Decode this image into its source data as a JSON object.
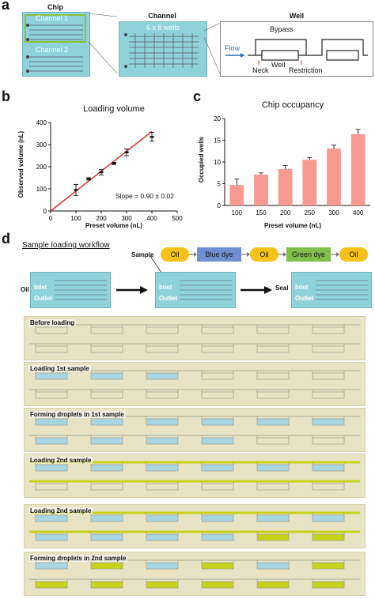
{
  "panel_a": {
    "letter": "a",
    "chip_title": "Chip",
    "channel1": "Channel 1",
    "channel2": "Channel 2",
    "channel_title": "Channel",
    "wells_label": "6 x 8 wells",
    "well_title": "Well",
    "bypass": "Bypass",
    "flow": "Flow",
    "well": "Well",
    "neck": "Neck",
    "restriction": "Restriction"
  },
  "panel_b": {
    "letter": "b",
    "slope_text": "Slope = 0.90 ± 0.02",
    "chart_data": {
      "type": "scatter",
      "title": "Loading volume",
      "xlabel": "Preset volume (nL)",
      "ylabel": "Observed volume (nL)",
      "x": [
        100,
        150,
        200,
        250,
        300,
        400
      ],
      "y": [
        95,
        145,
        175,
        215,
        265,
        335
      ],
      "err": [
        25,
        5,
        12,
        5,
        15,
        20
      ],
      "xlim": [
        0,
        500
      ],
      "ylim": [
        0,
        400
      ],
      "xticks": [
        "0",
        "100",
        "200",
        "300",
        "400",
        "500"
      ],
      "yticks": [
        "0",
        "100",
        "200",
        "300",
        "400"
      ],
      "fit_color": "#e03a2b",
      "point_color": "#111111"
    }
  },
  "panel_c": {
    "letter": "c",
    "chart_data": {
      "type": "bar",
      "title": "Chip occupancy",
      "xlabel": "Preset volume (nL)",
      "ylabel": "Occupied wells",
      "categories": [
        "100",
        "150",
        "200",
        "250",
        "300",
        "400"
      ],
      "values": [
        4.7,
        7.1,
        8.4,
        10.5,
        13.1,
        16.4
      ],
      "err": [
        1.4,
        0.4,
        0.8,
        0.5,
        0.8,
        1.1
      ],
      "ylim": [
        0,
        20
      ],
      "yticks": [
        "0",
        "5",
        "10",
        "15",
        "20"
      ],
      "bar_color": "#f79a92",
      "err_color": "#222222"
    }
  },
  "panel_d": {
    "letter": "d",
    "workflow_title": "Sample loading workflow",
    "sample": "Sample",
    "oil_left": "Oil",
    "inlet": "Inlet",
    "outlet": "Outlet",
    "seal": "Seal",
    "sequence": [
      {
        "label": "Oil",
        "kind": "pill",
        "color": "#f6c21a"
      },
      {
        "label": "Blue dye",
        "kind": "box",
        "color": "#6f8fd1"
      },
      {
        "label": "Oil",
        "kind": "pill",
        "color": "#f6c21a"
      },
      {
        "label": "Green dye",
        "kind": "box",
        "color": "#7fbf4a"
      },
      {
        "label": "Oil",
        "kind": "pill",
        "color": "#f6c21a"
      }
    ],
    "strips": [
      {
        "label": "Before loading",
        "fill": "none"
      },
      {
        "label": "Loading 1st sample",
        "fill": "blue-partial"
      },
      {
        "label": "Forming droplets in 1st sample",
        "fill": "blue"
      },
      {
        "label": "Loading 2nd sample",
        "fill": "green-channel"
      },
      {
        "label": "Loading 2nd sample",
        "fill": "green-more"
      },
      {
        "label": "Forming droplets in 2nd sample",
        "fill": "green-droplets"
      }
    ]
  }
}
